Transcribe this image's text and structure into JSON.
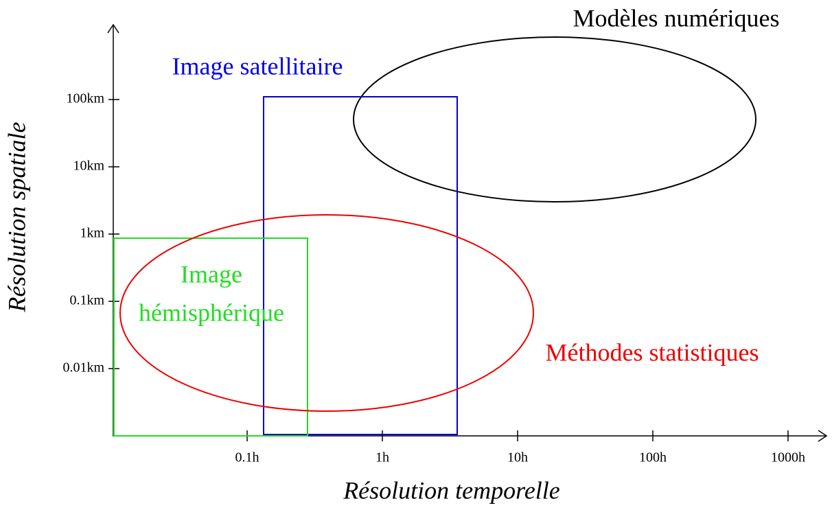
{
  "axes": {
    "x_label": "Résolution temporelle",
    "y_label": "Résolution spatiale",
    "x_ticks": [
      "0.1h",
      "1h",
      "10h",
      "100h",
      "1000h"
    ],
    "y_ticks": [
      "100km",
      "10km",
      "1km",
      "0.1km",
      "0.01km"
    ]
  },
  "regions": [
    {
      "label": "Modèles numériques"
    },
    {
      "label": "Image satellitaire"
    },
    {
      "lines": [
        "Image",
        "hémisphérique"
      ]
    },
    {
      "label": "Méthodes statistiques"
    }
  ]
}
